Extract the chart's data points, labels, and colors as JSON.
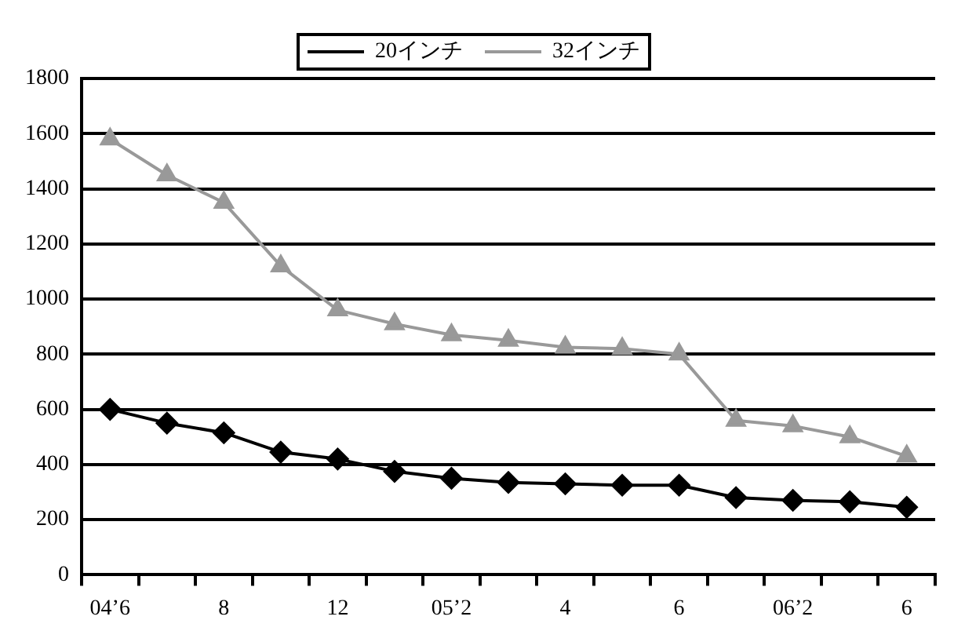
{
  "chart_data": {
    "type": "line",
    "categories": [
      "04’6",
      null,
      "8",
      null,
      "12",
      null,
      "05’2",
      null,
      "4",
      null,
      "6",
      null,
      "06’2",
      null,
      "6"
    ],
    "series": [
      {
        "name": "20インチ",
        "color": "#000000",
        "marker": "diamond",
        "values": [
          600,
          550,
          515,
          445,
          420,
          375,
          350,
          335,
          330,
          325,
          325,
          280,
          270,
          265,
          245
        ]
      },
      {
        "name": "32インチ",
        "color": "#999999",
        "marker": "triangle",
        "values": [
          1580,
          1450,
          1350,
          1120,
          960,
          910,
          870,
          850,
          825,
          820,
          800,
          560,
          540,
          500,
          430
        ]
      }
    ],
    "ylim": [
      0,
      1800
    ],
    "yticks": [
      0,
      200,
      400,
      600,
      800,
      1000,
      1200,
      1400,
      1600,
      1800
    ],
    "grid": "y",
    "legend": "top",
    "line_style": "solid"
  }
}
